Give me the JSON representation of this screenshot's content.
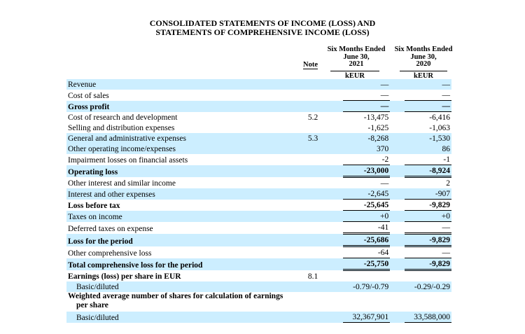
{
  "title_line1": "CONSOLIDATED STATEMENTS OF INCOME (LOSS) AND",
  "title_line2": "STATEMENTS OF COMPREHENSIVE INCOME (LOSS)",
  "columns": {
    "note": "Note",
    "col1": {
      "l1": "Six Months Ended",
      "l2": "June 30,",
      "l3": "2021",
      "unit": "kEUR"
    },
    "col2": {
      "l1": "Six Months Ended",
      "l2": "June 30,",
      "l3": "2020",
      "unit": "kEUR"
    }
  },
  "rows": [
    {
      "label": "Revenue",
      "note": "",
      "v1": "—",
      "v2": "—"
    },
    {
      "label": "Cost of sales",
      "note": "",
      "v1": "—",
      "v2": "—"
    },
    {
      "label": "Gross profit",
      "note": "",
      "v1": "—",
      "v2": "—"
    },
    {
      "label": "Cost of research and development",
      "note": "5.2",
      "v1": "-13,475",
      "v2": "-6,416"
    },
    {
      "label": "Selling and distribution expenses",
      "note": "",
      "v1": "-1,625",
      "v2": "-1,063"
    },
    {
      "label": "General and administrative expenses",
      "note": "5.3",
      "v1": "-8,268",
      "v2": "-1,530"
    },
    {
      "label": "Other operating income/expenses",
      "note": "",
      "v1": "370",
      "v2": "86"
    },
    {
      "label": "Impairment losses on financial assets",
      "note": "",
      "v1": "-2",
      "v2": "-1"
    },
    {
      "label": "Operating loss",
      "note": "",
      "v1": "-23,000",
      "v2": "-8,924"
    },
    {
      "label": "Other interest and similar income",
      "note": "",
      "v1": "—",
      "v2": "2"
    },
    {
      "label": "Interest and other expenses",
      "note": "",
      "v1": "-2,645",
      "v2": "-907"
    },
    {
      "label": "Loss before tax",
      "note": "",
      "v1": "-25,645",
      "v2": "-9,829"
    },
    {
      "label": "Taxes on income",
      "note": "",
      "v1": "+0",
      "v2": "+0"
    },
    {
      "label": "Deferred taxes on expense",
      "note": "",
      "v1": "-41",
      "v2": "—"
    },
    {
      "label": "Loss for the period",
      "note": "",
      "v1": "-25,686",
      "v2": "-9,829"
    },
    {
      "label": "Other comprehensive loss",
      "note": "",
      "v1": "-64",
      "v2": "—"
    },
    {
      "label": "Total comprehensive loss for the period",
      "note": "",
      "v1": "-25,750",
      "v2": "-9,829"
    },
    {
      "label": "Earnings (loss) per share in EUR",
      "note": "8.1",
      "v1": "",
      "v2": ""
    },
    {
      "label": "Basic/diluted",
      "note": "",
      "v1": "-0.79/-0.79",
      "v2": "-0.29/-0.29"
    },
    {
      "label": "Weighted average number of shares for calculation of earnings",
      "label2": "per share",
      "note": "",
      "v1": "",
      "v2": ""
    },
    {
      "label": "Basic/diluted",
      "note": "",
      "v1": "32,367,901",
      "v2": "33,588,000"
    }
  ]
}
